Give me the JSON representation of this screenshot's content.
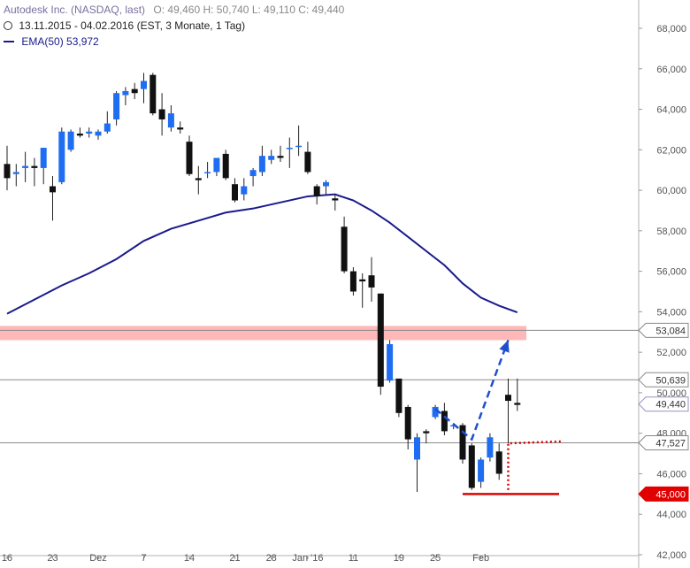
{
  "header": {
    "title": "Autodesk Inc. (NASDAQ, last)",
    "ohlc": "O: 49,460  H: 50,740  L: 49,110  C: 49,440",
    "period": "13.11.2015 - 04.02.2016 (EST, 3 Monate, 1 Tag)",
    "ema_label": "EMA(50)  53,972"
  },
  "colors": {
    "up": "#1f6df2",
    "down": "#111111",
    "ema": "#1a1a8c",
    "resistance_zone": "#ff9a9a",
    "projection": "#1f4fd0",
    "support": "#e00000"
  },
  "chart_data": {
    "type": "candlestick",
    "y_axis": {
      "min": 42000,
      "max": 68000,
      "ticks": [
        "42,000",
        "44,000",
        "46,000",
        "48,000",
        "50,000",
        "52,000",
        "54,000",
        "56,000",
        "58,000",
        "60,000",
        "62,000",
        "64,000",
        "66,000",
        "68,000"
      ],
      "side": "right"
    },
    "x_labels": [
      {
        "label": "16",
        "i": 0
      },
      {
        "label": "23",
        "i": 5
      },
      {
        "label": "Dez",
        "i": 10
      },
      {
        "label": "7",
        "i": 15
      },
      {
        "label": "14",
        "i": 20
      },
      {
        "label": "21",
        "i": 25
      },
      {
        "label": "28",
        "i": 29
      },
      {
        "label": "Jan '16",
        "i": 33
      },
      {
        "label": "11",
        "i": 38
      },
      {
        "label": "19",
        "i": 43
      },
      {
        "label": "25",
        "i": 47
      },
      {
        "label": "Feb",
        "i": 52
      }
    ],
    "candles": [
      {
        "o": 61300,
        "h": 62200,
        "l": 60000,
        "c": 60600
      },
      {
        "o": 60800,
        "h": 61300,
        "l": 60200,
        "c": 60900
      },
      {
        "o": 61100,
        "h": 61900,
        "l": 60400,
        "c": 61200
      },
      {
        "o": 61200,
        "h": 61600,
        "l": 60200,
        "c": 61100
      },
      {
        "o": 61100,
        "h": 62100,
        "l": 60300,
        "c": 62100
      },
      {
        "o": 60200,
        "h": 60700,
        "l": 58500,
        "c": 59900
      },
      {
        "o": 60400,
        "h": 63100,
        "l": 60300,
        "c": 62900
      },
      {
        "o": 62000,
        "h": 63000,
        "l": 61900,
        "c": 62900
      },
      {
        "o": 62800,
        "h": 63100,
        "l": 62600,
        "c": 62700
      },
      {
        "o": 62800,
        "h": 63100,
        "l": 62600,
        "c": 62900
      },
      {
        "o": 62700,
        "h": 63000,
        "l": 62500,
        "c": 62900
      },
      {
        "o": 62900,
        "h": 63900,
        "l": 62800,
        "c": 63300
      },
      {
        "o": 63500,
        "h": 64900,
        "l": 63200,
        "c": 64800
      },
      {
        "o": 64700,
        "h": 65100,
        "l": 64200,
        "c": 64900
      },
      {
        "o": 65000,
        "h": 65300,
        "l": 64500,
        "c": 64800
      },
      {
        "o": 65000,
        "h": 65800,
        "l": 64300,
        "c": 65400
      },
      {
        "o": 65700,
        "h": 65800,
        "l": 63700,
        "c": 63800
      },
      {
        "o": 64000,
        "h": 64800,
        "l": 62700,
        "c": 63500
      },
      {
        "o": 63100,
        "h": 64200,
        "l": 62900,
        "c": 63800
      },
      {
        "o": 63100,
        "h": 63400,
        "l": 62800,
        "c": 63000
      },
      {
        "o": 62400,
        "h": 62700,
        "l": 60700,
        "c": 60800
      },
      {
        "o": 60600,
        "h": 61200,
        "l": 59800,
        "c": 60500
      },
      {
        "o": 60900,
        "h": 61400,
        "l": 60600,
        "c": 60900
      },
      {
        "o": 60900,
        "h": 61600,
        "l": 60700,
        "c": 61600
      },
      {
        "o": 61800,
        "h": 62000,
        "l": 60500,
        "c": 60600
      },
      {
        "o": 60300,
        "h": 60600,
        "l": 59400,
        "c": 59500
      },
      {
        "o": 59800,
        "h": 60600,
        "l": 59500,
        "c": 60200
      },
      {
        "o": 60700,
        "h": 61100,
        "l": 60200,
        "c": 61000
      },
      {
        "o": 60900,
        "h": 62200,
        "l": 60700,
        "c": 61700
      },
      {
        "o": 61500,
        "h": 62000,
        "l": 61300,
        "c": 61700
      },
      {
        "o": 61700,
        "h": 62200,
        "l": 61400,
        "c": 61600
      },
      {
        "o": 62100,
        "h": 62600,
        "l": 61100,
        "c": 62100
      },
      {
        "o": 62200,
        "h": 63200,
        "l": 61700,
        "c": 62200
      },
      {
        "o": 61900,
        "h": 62400,
        "l": 60800,
        "c": 60900
      },
      {
        "o": 60200,
        "h": 60300,
        "l": 59300,
        "c": 59700
      },
      {
        "o": 60200,
        "h": 60500,
        "l": 59800,
        "c": 60400
      },
      {
        "o": 59600,
        "h": 59800,
        "l": 59000,
        "c": 59500
      },
      {
        "o": 58200,
        "h": 58700,
        "l": 55900,
        "c": 56000
      },
      {
        "o": 56000,
        "h": 56200,
        "l": 54800,
        "c": 55000
      },
      {
        "o": 55600,
        "h": 55900,
        "l": 54200,
        "c": 55500
      },
      {
        "o": 55800,
        "h": 56700,
        "l": 54500,
        "c": 55200
      },
      {
        "o": 54900,
        "h": 54900,
        "l": 49900,
        "c": 50300
      },
      {
        "o": 50600,
        "h": 52600,
        "l": 50500,
        "c": 52400
      },
      {
        "o": 50700,
        "h": 50700,
        "l": 48800,
        "c": 49000
      },
      {
        "o": 49300,
        "h": 49400,
        "l": 47200,
        "c": 47700
      },
      {
        "o": 46700,
        "h": 48000,
        "l": 45100,
        "c": 47800
      },
      {
        "o": 48100,
        "h": 48200,
        "l": 47500,
        "c": 48000
      },
      {
        "o": 48800,
        "h": 49400,
        "l": 48700,
        "c": 49300
      },
      {
        "o": 49100,
        "h": 49500,
        "l": 47900,
        "c": 48100
      },
      {
        "o": 48400,
        "h": 48500,
        "l": 48200,
        "c": 48400
      },
      {
        "o": 48400,
        "h": 48500,
        "l": 46500,
        "c": 46700
      },
      {
        "o": 47400,
        "h": 47500,
        "l": 45200,
        "c": 45300
      },
      {
        "o": 45600,
        "h": 46800,
        "l": 45300,
        "c": 46700
      },
      {
        "o": 46800,
        "h": 48000,
        "l": 46600,
        "c": 47800
      },
      {
        "o": 47100,
        "h": 47500,
        "l": 45700,
        "c": 46000
      },
      {
        "o": 49900,
        "h": 50700,
        "l": 47500,
        "c": 49600
      },
      {
        "o": 49500,
        "h": 50700,
        "l": 49100,
        "c": 49400
      }
    ],
    "ema50": [
      {
        "i": 0,
        "v": 53900
      },
      {
        "i": 3,
        "v": 54600
      },
      {
        "i": 6,
        "v": 55300
      },
      {
        "i": 9,
        "v": 55900
      },
      {
        "i": 12,
        "v": 56600
      },
      {
        "i": 15,
        "v": 57500
      },
      {
        "i": 18,
        "v": 58100
      },
      {
        "i": 21,
        "v": 58500
      },
      {
        "i": 24,
        "v": 58900
      },
      {
        "i": 27,
        "v": 59100
      },
      {
        "i": 30,
        "v": 59400
      },
      {
        "i": 33,
        "v": 59700
      },
      {
        "i": 36,
        "v": 59800
      },
      {
        "i": 38,
        "v": 59500
      },
      {
        "i": 40,
        "v": 59000
      },
      {
        "i": 42,
        "v": 58400
      },
      {
        "i": 44,
        "v": 57700
      },
      {
        "i": 46,
        "v": 57000
      },
      {
        "i": 48,
        "v": 56300
      },
      {
        "i": 50,
        "v": 55400
      },
      {
        "i": 52,
        "v": 54700
      },
      {
        "i": 54,
        "v": 54300
      },
      {
        "i": 56,
        "v": 53972
      }
    ],
    "resistance_zone": {
      "from": 52600,
      "to": 53300
    },
    "levels": [
      {
        "value": 53084,
        "label": "53,084",
        "style": "boxed"
      },
      {
        "value": 50639,
        "label": "50,639",
        "style": "boxed"
      },
      {
        "value": 49440,
        "label": "49,440",
        "style": "last"
      },
      {
        "value": 47527,
        "label": "47,527",
        "style": "boxed"
      },
      {
        "value": 45000,
        "label": "45,000",
        "style": "red"
      }
    ],
    "projection": [
      {
        "i": 47,
        "v": 49200
      },
      {
        "i": 51,
        "v": 47700
      },
      {
        "i": 55,
        "v": 52600
      }
    ],
    "support_line": {
      "value": 45000,
      "from_i": 50,
      "to_i": 60
    },
    "dotted_path": [
      {
        "i": 55,
        "v": 45200
      },
      {
        "i": 55,
        "v": 47500
      },
      {
        "i": 61,
        "v": 47600
      }
    ]
  }
}
